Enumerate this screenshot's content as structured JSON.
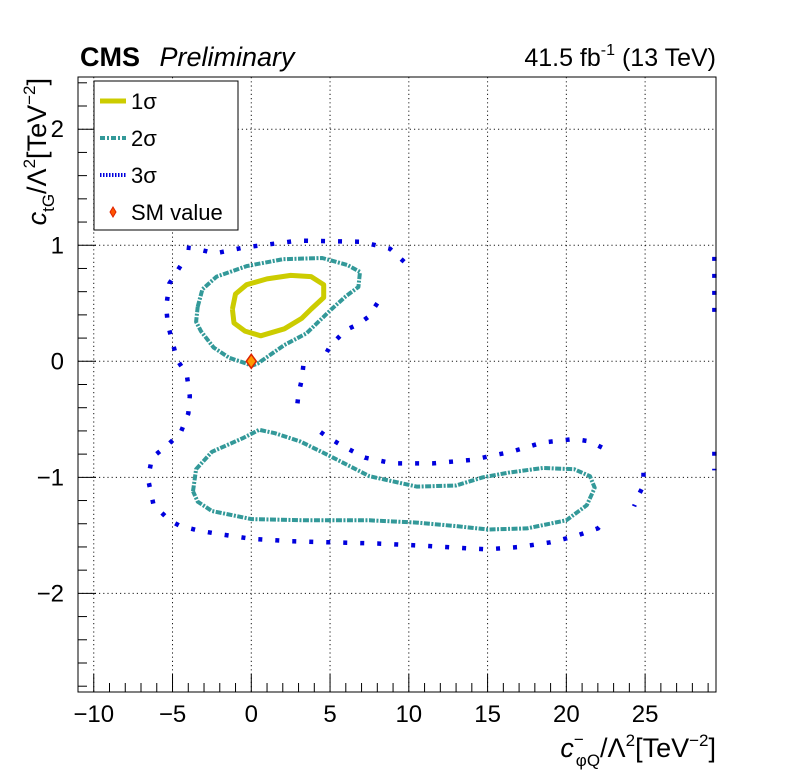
{
  "header": {
    "experiment": "CMS",
    "status": "Preliminary",
    "lumi_prefix": "41.5 fb",
    "lumi_exp": "-1",
    "lumi_suffix": " (13 TeV)"
  },
  "chart_data": {
    "type": "contour",
    "xlim": [
      -11,
      29.5
    ],
    "ylim": [
      -2.85,
      2.45
    ],
    "xticks": [
      -10,
      -5,
      0,
      5,
      10,
      15,
      20,
      25
    ],
    "xtick_labels": [
      "−10",
      "−5",
      "0",
      "5",
      "10",
      "15",
      "20",
      "25"
    ],
    "yticks": [
      -2,
      -1,
      0,
      1,
      2
    ],
    "ytick_labels": [
      "−2",
      "−1",
      "0",
      "1",
      "2"
    ],
    "xlabel": {
      "c": "c",
      "sup": "−",
      "sub": "φQ",
      "rest": "/Λ",
      "rest_sup": "2",
      "unit": "[TeV",
      "unit_sup": "−2",
      "unit_end": "]"
    },
    "ylabel": {
      "c": "c",
      "sub": "tG",
      "rest": "/Λ",
      "rest_sup": "2",
      "unit": "[TeV",
      "unit_sup": "−2",
      "unit_end": "]"
    },
    "grid": true,
    "legend": {
      "placement": "top-left",
      "entries": [
        {
          "label": "1σ",
          "style": "solid"
        },
        {
          "label": "2σ",
          "style": "dashdot"
        },
        {
          "label": "3σ",
          "style": "dotted"
        },
        {
          "label": "SM value",
          "style": "marker"
        }
      ]
    },
    "colors": {
      "one_sigma": "#cccc00",
      "two_sigma": "#339999",
      "three_sigma": "#0000dd",
      "sm_fill": "#ff9900",
      "sm_edge": "#dd2200"
    },
    "series": [
      {
        "name": "1σ",
        "contours": [
          [
            [
              -1.2,
              0.45
            ],
            [
              -1.0,
              0.58
            ],
            [
              -0.3,
              0.66
            ],
            [
              1.0,
              0.71
            ],
            [
              2.5,
              0.74
            ],
            [
              3.8,
              0.73
            ],
            [
              4.6,
              0.66
            ],
            [
              4.6,
              0.55
            ],
            [
              3.8,
              0.45
            ],
            [
              3.2,
              0.37
            ],
            [
              2.1,
              0.28
            ],
            [
              0.6,
              0.22
            ],
            [
              -0.4,
              0.26
            ],
            [
              -1.1,
              0.33
            ],
            [
              -1.2,
              0.45
            ]
          ]
        ]
      },
      {
        "name": "2σ",
        "contours": [
          [
            [
              -3.4,
              0.47
            ],
            [
              -3.1,
              0.62
            ],
            [
              -2.2,
              0.73
            ],
            [
              -0.3,
              0.82
            ],
            [
              2.0,
              0.88
            ],
            [
              4.5,
              0.89
            ],
            [
              6.1,
              0.83
            ],
            [
              6.9,
              0.77
            ],
            [
              6.8,
              0.64
            ],
            [
              6.0,
              0.56
            ],
            [
              5.1,
              0.45
            ],
            [
              3.5,
              0.24
            ],
            [
              2.1,
              0.14
            ],
            [
              0.4,
              -0.02
            ],
            [
              0.0,
              -0.04
            ],
            [
              -0.3,
              -0.02
            ],
            [
              -1.4,
              0.03
            ],
            [
              -2.4,
              0.12
            ],
            [
              -3.2,
              0.26
            ],
            [
              -3.5,
              0.34
            ],
            [
              -3.4,
              0.47
            ]
          ],
          [
            [
              -3.7,
              -1.12
            ],
            [
              -3.5,
              -0.93
            ],
            [
              -2.5,
              -0.78
            ],
            [
              -0.5,
              -0.66
            ],
            [
              0.5,
              -0.59
            ],
            [
              1.5,
              -0.62
            ],
            [
              3.1,
              -0.69
            ],
            [
              4.9,
              -0.81
            ],
            [
              7.5,
              -0.99
            ],
            [
              10.5,
              -1.08
            ],
            [
              13.0,
              -1.07
            ],
            [
              14.7,
              -1.0
            ],
            [
              16.3,
              -0.96
            ],
            [
              18.5,
              -0.92
            ],
            [
              20.5,
              -0.93
            ],
            [
              21.5,
              -0.99
            ],
            [
              21.8,
              -1.09
            ],
            [
              21.3,
              -1.24
            ],
            [
              20.0,
              -1.37
            ],
            [
              17.5,
              -1.44
            ],
            [
              15.0,
              -1.45
            ],
            [
              13.0,
              -1.42
            ],
            [
              10.5,
              -1.39
            ],
            [
              7.5,
              -1.37
            ],
            [
              3.5,
              -1.37
            ],
            [
              0.0,
              -1.36
            ],
            [
              -2.5,
              -1.29
            ],
            [
              -3.4,
              -1.21
            ],
            [
              -3.7,
              -1.12
            ]
          ]
        ]
      },
      {
        "name": "3σ",
        "contours": [
          [
            [
              -4.1,
              0.98
            ],
            [
              -3.5,
              0.97
            ],
            [
              -2.3,
              0.93
            ],
            [
              -0.5,
              0.98
            ],
            [
              3.0,
              1.04
            ],
            [
              7.0,
              1.03
            ],
            [
              8.8,
              0.97
            ],
            [
              10.0,
              0.82
            ]
          ],
          [
            [
              -4.5,
              0.82
            ],
            [
              -5.2,
              0.67
            ],
            [
              -5.4,
              0.47
            ],
            [
              -5.3,
              0.32
            ],
            [
              -4.7,
              0.01
            ],
            [
              -4.1,
              -0.11
            ],
            [
              -3.9,
              -0.3
            ],
            [
              -4.0,
              -0.45
            ],
            [
              -4.5,
              -0.62
            ],
            [
              -5.3,
              -0.72
            ],
            [
              -6.3,
              -0.83
            ],
            [
              -6.5,
              -0.97
            ]
          ],
          [
            [
              -6.5,
              -1.05
            ],
            [
              -6.2,
              -1.24
            ],
            [
              -5.8,
              -1.29
            ],
            [
              -5.2,
              -1.37
            ],
            [
              -4.5,
              -1.42
            ],
            [
              -3.3,
              -1.46
            ],
            [
              -2.0,
              -1.49
            ],
            [
              0.0,
              -1.53
            ],
            [
              2.5,
              -1.55
            ],
            [
              5.0,
              -1.56
            ],
            [
              8.0,
              -1.57
            ],
            [
              11.0,
              -1.59
            ],
            [
              13.5,
              -1.61
            ],
            [
              15.0,
              -1.62
            ],
            [
              17.0,
              -1.6
            ],
            [
              19.0,
              -1.56
            ],
            [
              20.5,
              -1.51
            ],
            [
              22.0,
              -1.44
            ],
            [
              22.5,
              -1.37
            ]
          ],
          [
            [
              8.0,
              0.5
            ],
            [
              7.4,
              0.38
            ],
            [
              6.8,
              0.32
            ],
            [
              6.0,
              0.27
            ],
            [
              5.0,
              0.13
            ],
            [
              4.8,
              0.08
            ]
          ],
          [
            [
              3.3,
              -0.04
            ],
            [
              3.2,
              -0.16
            ],
            [
              3.0,
              -0.28
            ],
            [
              2.9,
              -0.4
            ]
          ],
          [
            [
              4.4,
              -0.61
            ],
            [
              4.8,
              -0.65
            ],
            [
              5.8,
              -0.73
            ],
            [
              7.2,
              -0.83
            ],
            [
              9.0,
              -0.88
            ],
            [
              11.5,
              -0.88
            ],
            [
              14.0,
              -0.85
            ],
            [
              16.5,
              -0.78
            ],
            [
              18.5,
              -0.7
            ],
            [
              20.5,
              -0.67
            ],
            [
              21.5,
              -0.69
            ],
            [
              22.5,
              -0.76
            ]
          ],
          [
            [
              24.9,
              -0.96
            ],
            [
              24.9,
              -1.07
            ],
            [
              24.6,
              -1.15
            ],
            [
              24.3,
              -1.25
            ]
          ],
          [
            [
              29.4,
              0.9
            ],
            [
              29.4,
              0.7
            ],
            [
              29.4,
              0.5
            ],
            [
              29.4,
              0.32
            ]
          ],
          [
            [
              29.4,
              -0.78
            ],
            [
              29.4,
              -0.86
            ],
            [
              29.4,
              -0.94
            ]
          ]
        ]
      }
    ],
    "sm_point": {
      "name": "SM value",
      "x": 0,
      "y": 0
    }
  }
}
